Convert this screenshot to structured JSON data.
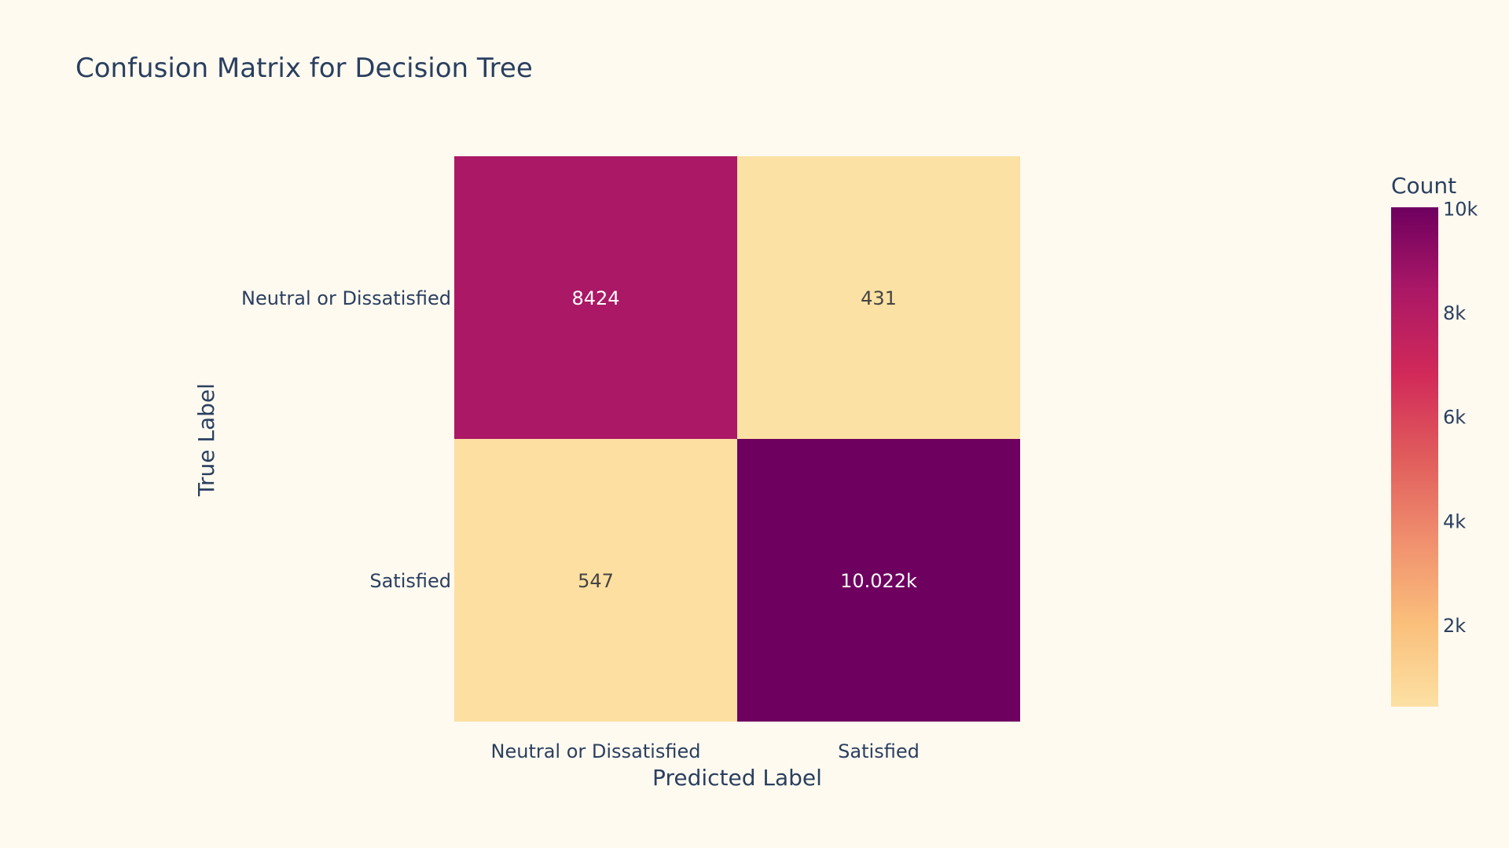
{
  "chart_data": {
    "type": "heatmap",
    "title": "Confusion Matrix for Decision Tree",
    "xlabel": "Predicted Label",
    "ylabel": "True Label",
    "x_categories": [
      "Neutral or Dissatisfied",
      "Satisfied"
    ],
    "y_categories": [
      "Neutral or Dissatisfied",
      "Satisfied"
    ],
    "values": [
      [
        8424,
        431
      ],
      [
        547,
        10022
      ]
    ],
    "cell_labels": [
      [
        "8424",
        "431"
      ],
      [
        "547",
        "10.022k"
      ]
    ],
    "colorbar": {
      "title": "Count",
      "range": [
        431,
        10022
      ],
      "ticks": [
        2000,
        4000,
        6000,
        8000,
        10000
      ],
      "tick_labels": [
        "2k",
        "4k",
        "6k",
        "8k",
        "10k"
      ],
      "colorscale": [
        "#fce1a4",
        "#fabf7b",
        "#f08f6e",
        "#e05c5c",
        "#d12959",
        "#ab1866",
        "#6e005f"
      ]
    },
    "colors": {
      "background": "#fffaf0",
      "text": "#2a3f5f",
      "cell_text_dark": "#444444",
      "cell_text_light": "#ffffff"
    }
  }
}
